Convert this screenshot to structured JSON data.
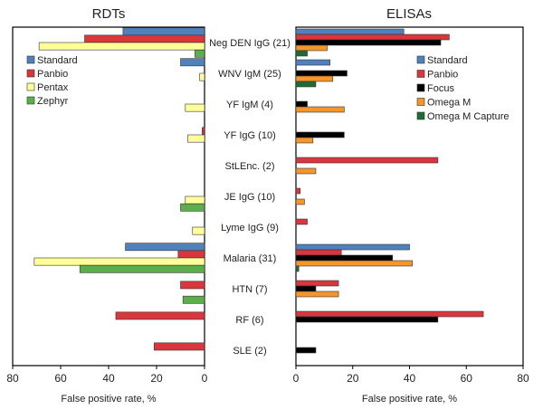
{
  "chart_data": [
    {
      "type": "bar",
      "orientation": "horizontal",
      "direction": "reversed",
      "title": "RDTs",
      "xlabel": "False positive rate, %",
      "xlim": [
        0,
        80
      ],
      "xticks": [
        80,
        60,
        40,
        20,
        0
      ],
      "grid": false,
      "legend": "top-left",
      "categories": [
        "Neg DEN IgG (21)",
        "WNV IgM (25)",
        "YF IgM (4)",
        "YF IgG (10)",
        "StLEnc. (2)",
        "JE IgG (10)",
        "Lyme IgG (9)",
        "Malaria (31)",
        "HTN (7)",
        "RF (6)",
        "SLE (2)"
      ],
      "series": [
        {
          "name": "Standard",
          "color": "#4f81bd",
          "values": [
            34,
            10,
            0,
            0,
            0,
            0,
            0,
            33,
            0,
            0,
            0
          ]
        },
        {
          "name": "Panbio",
          "color": "#d9363e",
          "values": [
            50,
            0,
            0,
            1,
            0,
            0,
            0,
            11,
            10,
            37,
            21
          ]
        },
        {
          "name": "Pentax",
          "color": "#ffff99",
          "values": [
            69,
            2,
            8,
            7,
            0,
            8,
            5,
            71,
            0,
            0,
            0
          ]
        },
        {
          "name": "Zephyr",
          "color": "#5bae4b",
          "values": [
            4,
            0,
            0,
            0,
            0,
            10,
            0,
            52,
            9,
            0,
            0
          ]
        }
      ]
    },
    {
      "type": "bar",
      "orientation": "horizontal",
      "title": "ELISAs",
      "xlabel": "False positive rate, %",
      "xlim": [
        0,
        80
      ],
      "xticks": [
        0,
        20,
        40,
        60,
        80
      ],
      "grid": false,
      "legend": "top-right",
      "categories": [
        "Neg DEN IgG (21)",
        "WNV IgM (25)",
        "YF IgM (4)",
        "YF IgG (10)",
        "StLEnc. (2)",
        "JE IgG (10)",
        "Lyme IgG (9)",
        "Malaria (31)",
        "HTN (7)",
        "RF (6)",
        "SLE (2)"
      ],
      "series": [
        {
          "name": "Standard",
          "color": "#4f81bd",
          "values": [
            38,
            12,
            0,
            0,
            0,
            0,
            0,
            40,
            0,
            0,
            0
          ]
        },
        {
          "name": "Panbio",
          "color": "#d9363e",
          "values": [
            54,
            0,
            0,
            0,
            50,
            1.5,
            4,
            16,
            15,
            66,
            0
          ]
        },
        {
          "name": "Focus",
          "color": "#000000",
          "values": [
            51,
            18,
            4,
            17,
            0,
            0,
            0,
            34,
            7,
            50,
            7
          ]
        },
        {
          "name": "Omega M",
          "color": "#f5962a",
          "values": [
            11,
            13,
            17,
            6,
            7,
            3,
            0,
            41,
            15,
            0,
            0
          ]
        },
        {
          "name": "Omega M Capture",
          "color": "#1e6b35",
          "values": [
            4,
            7,
            0,
            0,
            0,
            0,
            0,
            1,
            0,
            0,
            0
          ]
        }
      ]
    }
  ]
}
